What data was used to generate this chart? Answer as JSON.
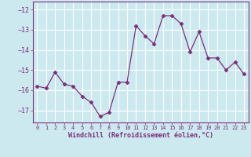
{
  "x": [
    0,
    1,
    2,
    3,
    4,
    5,
    6,
    7,
    8,
    9,
    10,
    11,
    12,
    13,
    14,
    15,
    16,
    17,
    18,
    19,
    20,
    21,
    22,
    23
  ],
  "y": [
    -15.8,
    -15.9,
    -15.1,
    -15.7,
    -15.8,
    -16.3,
    -16.6,
    -17.3,
    -17.1,
    -15.6,
    -15.6,
    -12.8,
    -13.3,
    -13.7,
    -12.3,
    -12.3,
    -12.7,
    -14.1,
    -13.1,
    -14.4,
    -14.4,
    -15.0,
    -14.6,
    -15.2
  ],
  "line_color": "#7b2f7b",
  "marker": "D",
  "marker_size": 2.5,
  "bg_color": "#cce9f0",
  "grid_color": "#ffffff",
  "xlabel": "Windchill (Refroidissement éolien,°C)",
  "xlabel_color": "#7b2f7b",
  "tick_color": "#7b2f7b",
  "spine_color": "#7b2f7b",
  "ylim": [
    -17.6,
    -11.6
  ],
  "xlim": [
    -0.5,
    23.5
  ],
  "yticks": [
    -17,
    -16,
    -15,
    -14,
    -13,
    -12
  ],
  "xticks": [
    0,
    1,
    2,
    3,
    4,
    5,
    6,
    7,
    8,
    9,
    10,
    11,
    12,
    13,
    14,
    15,
    16,
    17,
    18,
    19,
    20,
    21,
    22,
    23
  ],
  "figsize": [
    3.2,
    2.0
  ],
  "dpi": 100
}
